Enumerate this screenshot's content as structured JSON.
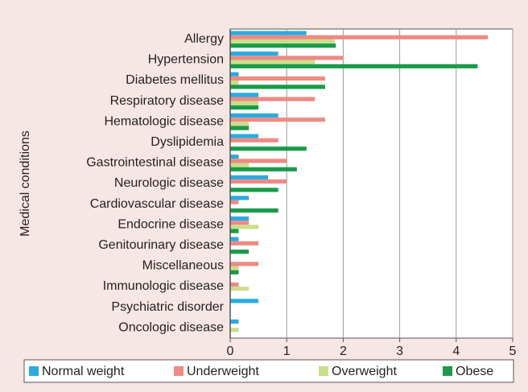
{
  "chart_data": {
    "type": "bar",
    "orientation": "horizontal",
    "ylabel": "Medical conditions",
    "categories": [
      "Allergy",
      "Hypertension",
      "Diabetes mellitus",
      "Respiratory disease",
      "Hematologic disease",
      "Dyslipidemia",
      "Gastrointestinal disease",
      "Neurologic disease",
      "Cardiovascular disease",
      "Endocrine disease",
      "Genitourinary disease",
      "Miscellaneous",
      "Immunologic disease",
      "Psychiatric disorder",
      "Oncologic disease"
    ],
    "series": [
      {
        "name": "Normal weight",
        "color": "#29abe2",
        "values": [
          1.35,
          0.85,
          0.15,
          0.5,
          0.85,
          0.5,
          0.15,
          0.67,
          0.33,
          0.33,
          0.15,
          0,
          0,
          0.5,
          0.15
        ]
      },
      {
        "name": "Underweight",
        "color": "#ef8a84",
        "values": [
          4.56,
          2.0,
          1.68,
          1.5,
          1.68,
          0.85,
          1.0,
          1.0,
          0.15,
          0.33,
          0.5,
          0.5,
          0.15,
          0,
          0
        ]
      },
      {
        "name": "Overweight",
        "color": "#c9df8a",
        "values": [
          1.85,
          1.5,
          0.15,
          0.5,
          0.33,
          0,
          0.33,
          0,
          0,
          0.5,
          0,
          0.15,
          0.33,
          0,
          0.15
        ]
      },
      {
        "name": "Obese",
        "color": "#1a9a4a",
        "values": [
          1.87,
          4.38,
          1.68,
          0.5,
          0.33,
          1.35,
          1.18,
          0.85,
          0.85,
          0.15,
          0.33,
          0.15,
          0,
          0,
          0
        ]
      }
    ],
    "xlim": [
      0,
      5
    ],
    "xticks": [
      0,
      1,
      2,
      3,
      4,
      5
    ],
    "grid": true
  }
}
